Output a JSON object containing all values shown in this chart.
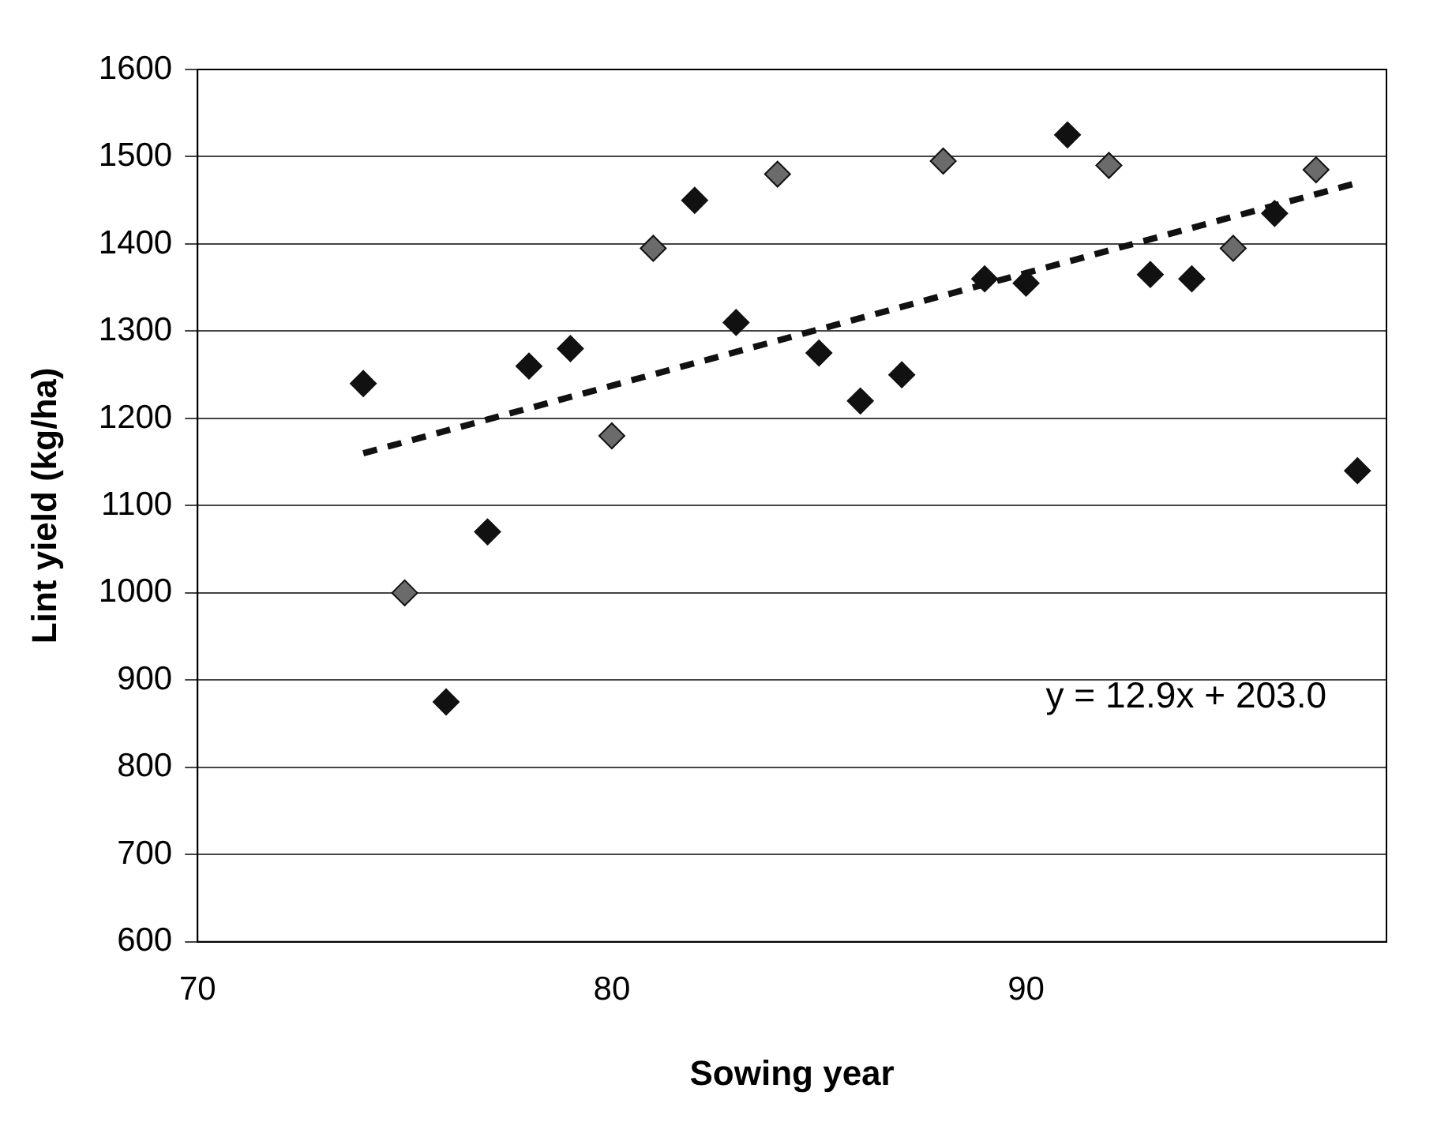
{
  "chart_data": {
    "type": "scatter",
    "xlabel": "Sowing year",
    "ylabel": "Lint yield (kg/ha)",
    "xlim": [
      70,
      98.7
    ],
    "xticks": [
      70,
      80,
      90
    ],
    "ylim": [
      600,
      1600
    ],
    "yticks": [
      600,
      700,
      800,
      900,
      1000,
      1100,
      1200,
      1300,
      1400,
      1500,
      1600
    ],
    "grid": "y",
    "legend": false,
    "marker": "diamond",
    "series": [
      {
        "color": "#111111",
        "x": [
          74,
          76,
          77,
          78,
          79,
          82,
          83,
          85,
          86,
          87,
          89,
          90,
          91,
          93,
          94,
          96,
          98
        ],
        "values": [
          1240,
          875,
          1070,
          1260,
          1280,
          1450,
          1310,
          1275,
          1220,
          1250,
          1360,
          1355,
          1525,
          1365,
          1360,
          1435,
          1140
        ]
      },
      {
        "color": "#6b6b6b",
        "x": [
          75,
          80,
          81,
          84,
          88,
          92,
          95,
          97
        ],
        "values": [
          1000,
          1180,
          1395,
          1480,
          1495,
          1490,
          1395,
          1485
        ]
      },
      {
        "type": "line",
        "color": "#111111",
        "line_style": "dashed",
        "marker": "none",
        "x": [
          74,
          98
        ],
        "values": [
          1160,
          1470
        ]
      }
    ],
    "annotations": [
      "y = 12.9x + 203.0"
    ]
  }
}
